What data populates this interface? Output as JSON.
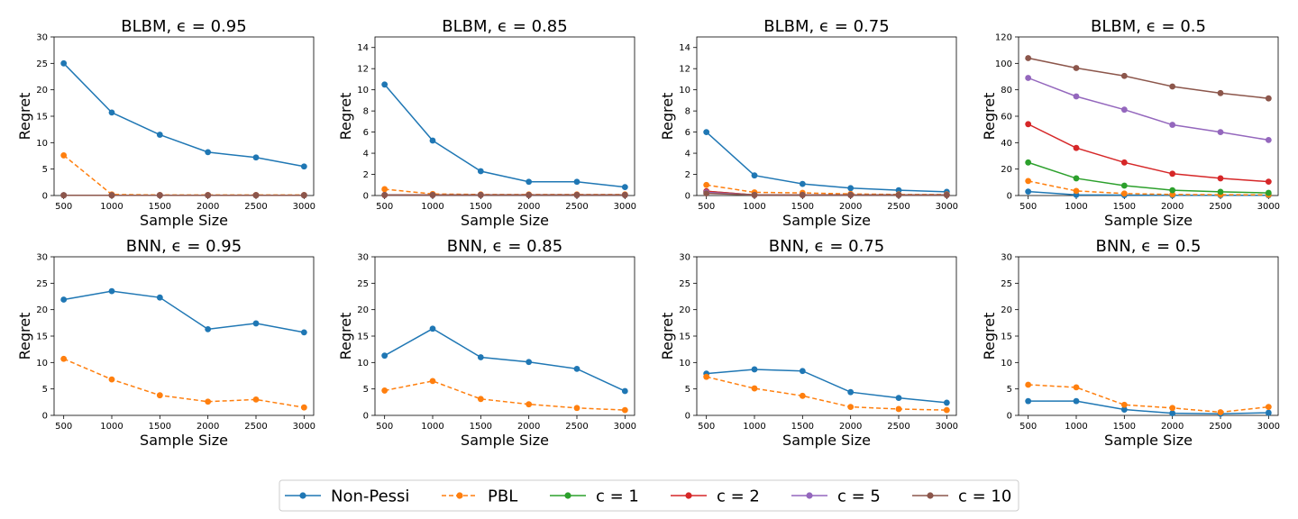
{
  "chart_data": [
    {
      "type": "line",
      "title": "BLBM, ϵ = 0.95",
      "xlabel": "Sample Size",
      "ylabel": "Regret",
      "x": [
        500,
        1000,
        1500,
        2000,
        2500,
        3000
      ],
      "ylim": [
        0,
        30
      ],
      "yticks": [
        0,
        5,
        10,
        15,
        20,
        25,
        30
      ],
      "series": [
        {
          "name": "Non-Pessi",
          "values": [
            25.0,
            15.7,
            11.5,
            8.2,
            7.2,
            5.5
          ]
        },
        {
          "name": "PBL",
          "values": [
            7.6,
            0.2,
            0.1,
            0.1,
            0.1,
            0.1
          ]
        },
        {
          "name": "c = 1",
          "values": [
            0.05,
            0.05,
            0.05,
            0.05,
            0.05,
            0.05
          ]
        },
        {
          "name": "c = 2",
          "values": [
            0.05,
            0.05,
            0.05,
            0.05,
            0.05,
            0.05
          ]
        },
        {
          "name": "c = 5",
          "values": [
            0.05,
            0.05,
            0.05,
            0.05,
            0.05,
            0.05
          ]
        },
        {
          "name": "c = 10",
          "values": [
            0.05,
            0.05,
            0.05,
            0.05,
            0.05,
            0.05
          ]
        }
      ]
    },
    {
      "type": "line",
      "title": "BLBM, ϵ = 0.85",
      "xlabel": "Sample Size",
      "ylabel": "Regret",
      "x": [
        500,
        1000,
        1500,
        2000,
        2500,
        3000
      ],
      "ylim": [
        0,
        15
      ],
      "yticks": [
        0,
        2,
        4,
        6,
        8,
        10,
        12,
        14
      ],
      "series": [
        {
          "name": "Non-Pessi",
          "values": [
            10.5,
            5.2,
            2.3,
            1.3,
            1.3,
            0.8
          ]
        },
        {
          "name": "PBL",
          "values": [
            0.6,
            0.15,
            0.1,
            0.1,
            0.1,
            0.1
          ]
        },
        {
          "name": "c = 1",
          "values": [
            0.05,
            0.05,
            0.05,
            0.05,
            0.05,
            0.05
          ]
        },
        {
          "name": "c = 2",
          "values": [
            0.05,
            0.05,
            0.05,
            0.05,
            0.05,
            0.05
          ]
        },
        {
          "name": "c = 5",
          "values": [
            0.05,
            0.05,
            0.05,
            0.05,
            0.05,
            0.05
          ]
        },
        {
          "name": "c = 10",
          "values": [
            0.05,
            0.05,
            0.05,
            0.05,
            0.05,
            0.05
          ]
        }
      ]
    },
    {
      "type": "line",
      "title": "BLBM, ϵ = 0.75",
      "xlabel": "Sample Size",
      "ylabel": "Regret",
      "x": [
        500,
        1000,
        1500,
        2000,
        2500,
        3000
      ],
      "ylim": [
        0,
        15
      ],
      "yticks": [
        0,
        2,
        4,
        6,
        8,
        10,
        12,
        14
      ],
      "series": [
        {
          "name": "Non-Pessi",
          "values": [
            6.0,
            1.9,
            1.1,
            0.7,
            0.5,
            0.35
          ]
        },
        {
          "name": "PBL",
          "values": [
            1.0,
            0.3,
            0.25,
            0.15,
            0.1,
            0.1
          ]
        },
        {
          "name": "c = 1",
          "values": [
            0.4,
            0.05,
            0.05,
            0.05,
            0.05,
            0.05
          ]
        },
        {
          "name": "c = 2",
          "values": [
            0.4,
            0.05,
            0.05,
            0.05,
            0.05,
            0.05
          ]
        },
        {
          "name": "c = 5",
          "values": [
            0.3,
            0.05,
            0.05,
            0.05,
            0.05,
            0.05
          ]
        },
        {
          "name": "c = 10",
          "values": [
            0.2,
            0.05,
            0.05,
            0.05,
            0.05,
            0.05
          ]
        }
      ]
    },
    {
      "type": "line",
      "title": "BLBM, ϵ = 0.5",
      "xlabel": "Sample Size",
      "ylabel": "Regret",
      "x": [
        500,
        1000,
        1500,
        2000,
        2500,
        3000
      ],
      "ylim": [
        0,
        120
      ],
      "yticks": [
        0,
        20,
        40,
        60,
        80,
        100,
        120
      ],
      "series": [
        {
          "name": "Non-Pessi",
          "values": [
            3.0,
            0.5,
            0.3,
            0.2,
            0.2,
            0.2
          ]
        },
        {
          "name": "PBL",
          "values": [
            11.0,
            3.5,
            1.5,
            0.8,
            0.6,
            0.5
          ]
        },
        {
          "name": "c = 1",
          "values": [
            25.0,
            13.0,
            7.5,
            4.0,
            2.8,
            2.0
          ]
        },
        {
          "name": "c = 2",
          "values": [
            54.0,
            36.0,
            25.0,
            16.5,
            13.0,
            10.5
          ]
        },
        {
          "name": "c = 5",
          "values": [
            89.0,
            75.0,
            65.0,
            53.5,
            48.0,
            42.0
          ]
        },
        {
          "name": "c = 10",
          "values": [
            104.0,
            96.5,
            90.5,
            82.5,
            77.5,
            73.5
          ]
        }
      ]
    },
    {
      "type": "line",
      "title": "BNN, ϵ = 0.95",
      "xlabel": "Sample Size",
      "ylabel": "Regret",
      "x": [
        500,
        1000,
        1500,
        2000,
        2500,
        3000
      ],
      "ylim": [
        0,
        30
      ],
      "yticks": [
        0,
        5,
        10,
        15,
        20,
        25,
        30
      ],
      "series": [
        {
          "name": "Non-Pessi",
          "values": [
            21.9,
            23.5,
            22.3,
            16.3,
            17.4,
            15.7
          ]
        },
        {
          "name": "PBL",
          "values": [
            10.7,
            6.8,
            3.8,
            2.6,
            3.0,
            1.5
          ]
        }
      ]
    },
    {
      "type": "line",
      "title": "BNN, ϵ = 0.85",
      "xlabel": "Sample Size",
      "ylabel": "Regret",
      "x": [
        500,
        1000,
        1500,
        2000,
        2500,
        3000
      ],
      "ylim": [
        0,
        30
      ],
      "yticks": [
        0,
        5,
        10,
        15,
        20,
        25,
        30
      ],
      "series": [
        {
          "name": "Non-Pessi",
          "values": [
            11.3,
            16.4,
            11.0,
            10.1,
            8.8,
            4.6
          ]
        },
        {
          "name": "PBL",
          "values": [
            4.7,
            6.5,
            3.1,
            2.1,
            1.4,
            1.0
          ]
        }
      ]
    },
    {
      "type": "line",
      "title": "BNN, ϵ = 0.75",
      "xlabel": "Sample Size",
      "ylabel": "Regret",
      "x": [
        500,
        1000,
        1500,
        2000,
        2500,
        3000
      ],
      "ylim": [
        0,
        30
      ],
      "yticks": [
        0,
        5,
        10,
        15,
        20,
        25,
        30
      ],
      "series": [
        {
          "name": "Non-Pessi",
          "values": [
            7.9,
            8.7,
            8.4,
            4.4,
            3.3,
            2.4
          ]
        },
        {
          "name": "PBL",
          "values": [
            7.3,
            5.1,
            3.7,
            1.6,
            1.2,
            1.0
          ]
        }
      ]
    },
    {
      "type": "line",
      "title": "BNN, ϵ = 0.5",
      "xlabel": "Sample Size",
      "ylabel": "Regret",
      "x": [
        500,
        1000,
        1500,
        2000,
        2500,
        3000
      ],
      "ylim": [
        0,
        30
      ],
      "yticks": [
        0,
        5,
        10,
        15,
        20,
        25,
        30
      ],
      "series": [
        {
          "name": "Non-Pessi",
          "values": [
            2.7,
            2.7,
            1.1,
            0.4,
            0.3,
            0.5
          ]
        },
        {
          "name": "PBL",
          "values": [
            5.8,
            5.3,
            2.0,
            1.4,
            0.6,
            1.6
          ]
        }
      ]
    }
  ],
  "legend": {
    "position": "bottom-center",
    "entries": [
      {
        "name": "Non-Pessi",
        "color": "#1f77b4",
        "style": "solid"
      },
      {
        "name": "PBL",
        "color": "#ff7f0e",
        "style": "dashed"
      },
      {
        "name": "c = 1",
        "color": "#2ca02c",
        "style": "solid"
      },
      {
        "name": "c = 2",
        "color": "#d62728",
        "style": "solid"
      },
      {
        "name": "c = 5",
        "color": "#9467bd",
        "style": "solid"
      },
      {
        "name": "c = 10",
        "color": "#8c564b",
        "style": "solid"
      }
    ]
  }
}
